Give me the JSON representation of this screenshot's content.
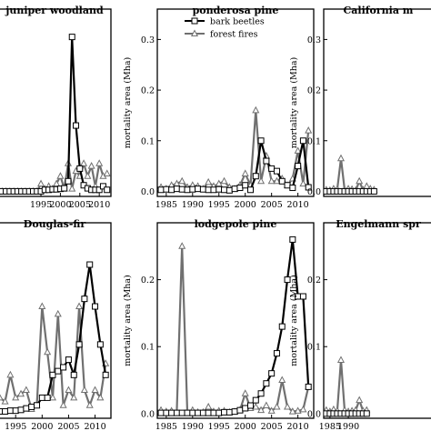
{
  "colors": {
    "bark_beetles": "#000000",
    "forest_fires": "#707070",
    "frame": "#000000",
    "background": "#ffffff"
  },
  "chart_data": [
    {
      "type": "line",
      "title": "juniper woodland",
      "xlabel": "",
      "ylabel": "",
      "xlim": [
        1984,
        2013
      ],
      "ylim": [
        -0.01,
        0.36
      ],
      "grid": false,
      "x_tick_labels": [
        "1995",
        "2000",
        "2005",
        "2010"
      ],
      "x": [
        1984,
        1985,
        1986,
        1987,
        1988,
        1989,
        1990,
        1991,
        1992,
        1993,
        1994,
        1995,
        1996,
        1997,
        1998,
        1999,
        2000,
        2001,
        2002,
        2003,
        2004,
        2005,
        2006,
        2007,
        2008,
        2009,
        2010,
        2011,
        2012
      ],
      "series": [
        {
          "name": "bark beetles",
          "marker": "square",
          "values": [
            0,
            0,
            0,
            0,
            0,
            0,
            0,
            0,
            0,
            0,
            0,
            0,
            0.003,
            0.003,
            0.004,
            0.004,
            0.005,
            0.006,
            0.02,
            0.305,
            0.13,
            0.045,
            0.012,
            0.006,
            0.003,
            0.003,
            0.003,
            0.01,
            0.003
          ]
        },
        {
          "name": "forest fires",
          "marker": "triangle",
          "values": [
            0,
            0,
            0,
            0,
            0,
            0,
            0,
            0,
            0,
            0,
            0,
            0.015,
            0.005,
            0.01,
            0.005,
            0.015,
            0.03,
            0.005,
            0.055,
            0.005,
            0.04,
            0.03,
            0.055,
            0.03,
            0.05,
            0.01,
            0.055,
            0.03,
            0.035
          ]
        }
      ]
    },
    {
      "type": "line",
      "title": "ponderosa pine",
      "xlabel": "",
      "ylabel": "mortality area (Mha)",
      "xlim": [
        1983.3,
        2013
      ],
      "ylim": [
        -0.01,
        0.36
      ],
      "grid": false,
      "x_tick_labels": [
        "1985",
        "1990",
        "1995",
        "2000",
        "2005",
        "2010"
      ],
      "y_tick_labels": [
        "0.0",
        "0.1",
        "0.2",
        "0.3"
      ],
      "legend": "top",
      "x": [
        1984,
        1985,
        1986,
        1987,
        1988,
        1989,
        1990,
        1991,
        1992,
        1993,
        1994,
        1995,
        1996,
        1997,
        1998,
        1999,
        2000,
        2001,
        2002,
        2003,
        2004,
        2005,
        2006,
        2007,
        2008,
        2009,
        2010,
        2011,
        2012
      ],
      "series": [
        {
          "name": "bark beetles",
          "marker": "square",
          "values": [
            0.003,
            0.004,
            0.003,
            0.005,
            0.004,
            0.003,
            0.004,
            0.005,
            0.004,
            0.003,
            0.003,
            0.004,
            0.003,
            0.002,
            0.005,
            0.007,
            0.012,
            0.003,
            0.03,
            0.1,
            0.06,
            0.045,
            0.04,
            0.02,
            0.012,
            0.007,
            0.05,
            0.1,
            0.008
          ]
        },
        {
          "name": "forest fires",
          "marker": "triangle",
          "values": [
            0.008,
            0.005,
            0.012,
            0.015,
            0.02,
            0.008,
            0.012,
            0.01,
            0.005,
            0.018,
            0.01,
            0.015,
            0.02,
            0.008,
            0.005,
            0.012,
            0.035,
            0.012,
            0.16,
            0.02,
            0.07,
            0.02,
            0.02,
            0.025,
            0.012,
            0.025,
            0.08,
            0.015,
            0.12
          ]
        }
      ]
    },
    {
      "type": "line",
      "title": "California m",
      "xlabel": "",
      "ylabel": "mortality area (Mha)",
      "xlim": [
        1983.3,
        2013
      ],
      "ylim": [
        -0.01,
        0.36
      ],
      "grid": false,
      "y_tick_labels": [
        "0.0",
        "0.1",
        "0.2",
        "0.3"
      ],
      "x": [
        1984,
        1985,
        1986,
        1987,
        1988,
        1989,
        1990,
        1991,
        1992,
        1993,
        1994,
        1995,
        1996,
        1997
      ],
      "series": [
        {
          "name": "bark beetles",
          "marker": "square",
          "values": [
            0,
            0,
            0,
            0,
            0,
            0,
            0,
            0,
            0,
            0,
            0,
            0,
            0,
            0
          ]
        },
        {
          "name": "forest fires",
          "marker": "triangle",
          "values": [
            0.003,
            0.002,
            0.005,
            0.004,
            0.065,
            0.003,
            0.005,
            0.004,
            0.002,
            0.02,
            0.003,
            0.01,
            0.005,
            0.003
          ]
        }
      ]
    },
    {
      "type": "line",
      "title": "Douglas-fir",
      "xlabel": "",
      "ylabel": "",
      "xlim": [
        1991.7,
        2013
      ],
      "ylim": [
        -0.007,
        0.25
      ],
      "grid": false,
      "x_tick_labels": [
        "1995",
        "2000",
        "2005",
        "2010"
      ],
      "x": [
        1992,
        1993,
        1994,
        1995,
        1996,
        1997,
        1998,
        1999,
        2000,
        2001,
        2002,
        2003,
        2004,
        2005,
        2006,
        2007,
        2008,
        2009,
        2010,
        2011,
        2012
      ],
      "series": [
        {
          "name": "bark beetles",
          "marker": "square",
          "values": [
            0.002,
            0.002,
            0.003,
            0.003,
            0.004,
            0.006,
            0.008,
            0.01,
            0.02,
            0.02,
            0.05,
            0.055,
            0.06,
            0.07,
            0.05,
            0.09,
            0.15,
            0.195,
            0.14,
            0.09,
            0.05
          ]
        },
        {
          "name": "forest fires",
          "marker": "triangle",
          "values": [
            0.02,
            0.015,
            0.05,
            0.02,
            0.025,
            0.03,
            0.005,
            0.01,
            0.14,
            0.08,
            0.02,
            0.13,
            0.01,
            0.03,
            0.02,
            0.14,
            0.03,
            0.01,
            0.03,
            0.02,
            0.065
          ]
        }
      ]
    },
    {
      "type": "line",
      "title": "lodgepole pine",
      "xlabel": "",
      "ylabel": "mortality area (Mha)",
      "xlim": [
        1983.3,
        2013
      ],
      "ylim": [
        -0.007,
        0.285
      ],
      "grid": false,
      "x_tick_labels": [
        "1985",
        "1990",
        "1995",
        "2000",
        "2005",
        "2010"
      ],
      "y_tick_labels": [
        "0.0",
        "0.1",
        "0.2"
      ],
      "x": [
        1984,
        1985,
        1986,
        1987,
        1988,
        1989,
        1990,
        1991,
        1992,
        1993,
        1994,
        1995,
        1996,
        1997,
        1998,
        1999,
        2000,
        2001,
        2002,
        2003,
        2004,
        2005,
        2006,
        2007,
        2008,
        2009,
        2010,
        2011,
        2012
      ],
      "series": [
        {
          "name": "bark beetles",
          "marker": "square",
          "values": [
            0.001,
            0.001,
            0.001,
            0.001,
            0.001,
            0.001,
            0.001,
            0.001,
            0.001,
            0.001,
            0.001,
            0.001,
            0.002,
            0.002,
            0.003,
            0.005,
            0.008,
            0.012,
            0.02,
            0.03,
            0.045,
            0.06,
            0.09,
            0.13,
            0.2,
            0.26,
            0.175,
            0.175,
            0.04
          ]
        },
        {
          "name": "forest fires",
          "marker": "triangle",
          "values": [
            0.005,
            0.003,
            0.004,
            0.002,
            0.25,
            0.003,
            0.005,
            0.002,
            0.002,
            0.01,
            0.003,
            0.004,
            0.004,
            0.002,
            0.003,
            0.005,
            0.03,
            0.008,
            0.01,
            0.005,
            0.012,
            0.004,
            0.01,
            0.05,
            0.01,
            0.003,
            0.004,
            0.006,
            0.04
          ]
        }
      ]
    },
    {
      "type": "line",
      "title": "Engelmann spr",
      "xlabel": "",
      "ylabel": "mortality area (Mha)",
      "xlim": [
        1983.3,
        2013
      ],
      "ylim": [
        -0.007,
        0.285
      ],
      "grid": false,
      "x_tick_labels": [
        "1985",
        "1990"
      ],
      "y_tick_labels": [
        "0.0",
        "0.1",
        "0.2"
      ],
      "x": [
        1984,
        1985,
        1986,
        1987,
        1988,
        1989,
        1990,
        1991,
        1992,
        1993,
        1994,
        1995
      ],
      "series": [
        {
          "name": "bark beetles",
          "marker": "square",
          "values": [
            0,
            0,
            0,
            0,
            0,
            0,
            0,
            0,
            0,
            0,
            0,
            0
          ]
        },
        {
          "name": "forest fires",
          "marker": "triangle",
          "values": [
            0.005,
            0.003,
            0.006,
            0.004,
            0.08,
            0.005,
            0.003,
            0.004,
            0.005,
            0.02,
            0.004,
            0.005
          ]
        }
      ]
    }
  ]
}
